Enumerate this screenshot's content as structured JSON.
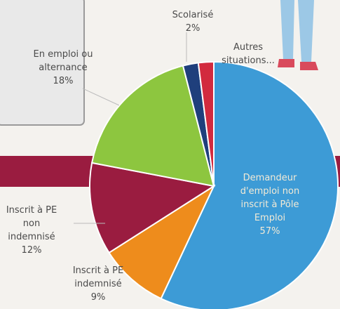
{
  "chart_data": {
    "type": "pie",
    "categories": [
      "Demandeur d'emploi non inscrit à Pôle Emploi",
      "Inscrit à PE indemnisé",
      "Inscrit à PE non indemnisé",
      "En emploi ou alternance",
      "Scolarisé",
      "Autres situations..."
    ],
    "values": [
      57,
      9,
      12,
      18,
      2,
      2
    ],
    "value_labels": [
      "57%",
      "9%",
      "12%",
      "18%",
      "2%",
      null
    ],
    "colors": [
      "#3d9bd6",
      "#ee8c1c",
      "#9a1c40",
      "#8dc63f",
      "#1f3f7c",
      "#d22a3e"
    ]
  }
}
